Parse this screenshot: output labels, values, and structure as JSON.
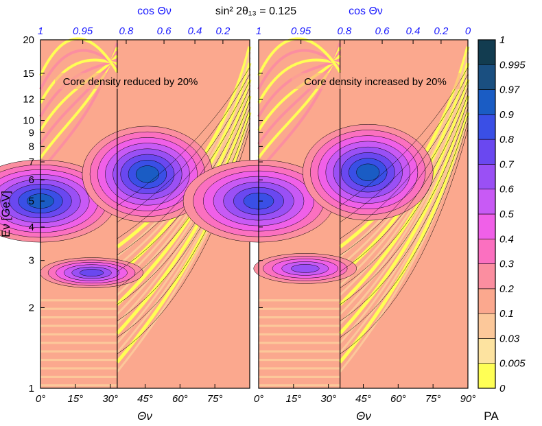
{
  "chart_data": {
    "type": "heatmap",
    "title": "sin² 2θ₁₃ = 0.125",
    "top_axis_label": "cos Θν",
    "xlabel": "Θν",
    "ylabel": "Eν [GeV]",
    "colorbar_label": "PA",
    "x_ticks": [
      "0°",
      "15°",
      "30°",
      "45°",
      "60°",
      "75°",
      "90°"
    ],
    "x_tick_values": [
      0,
      15,
      30,
      45,
      60,
      75,
      90
    ],
    "xlim": [
      0,
      90
    ],
    "top_ticks": [
      "1",
      "0.95",
      "0.8",
      "0.6",
      "0.4",
      "0.2",
      "0"
    ],
    "top_tick_values": [
      1,
      0.95,
      0.8,
      0.6,
      0.4,
      0.2,
      0
    ],
    "y_scale": "log",
    "ylim": [
      1,
      20
    ],
    "y_ticks": [
      "1",
      "2",
      "3",
      "4",
      "5",
      "6",
      "7",
      "8",
      "9",
      "10",
      "12",
      "15",
      "20"
    ],
    "y_tick_values": [
      1,
      2,
      3,
      4,
      5,
      6,
      7,
      8,
      9,
      10,
      12,
      15,
      20
    ],
    "colorbar_ticks": [
      "0",
      "0.005",
      "0.03",
      "0.1",
      "0.2",
      "0.3",
      "0.4",
      "0.5",
      "0.6",
      "0.7",
      "0.8",
      "0.9",
      "0.97",
      "0.995",
      "1"
    ],
    "colorbar_colors": [
      "#ffff55",
      "#fde3a0",
      "#fcc89a",
      "#fba88e",
      "#fb8ea0",
      "#fb70c0",
      "#f060e8",
      "#c85af5",
      "#9a50f5",
      "#6a48f0",
      "#3a4fe6",
      "#1a5cc4",
      "#1a4f80",
      "#123c50",
      "#0a2a28"
    ],
    "panels": [
      {
        "annotation": "Core density reduced by 20%",
        "ridge_theta": 33,
        "peaks": [
          {
            "theta": 0,
            "energy": 5.0,
            "P": 0.98
          },
          {
            "theta": 46,
            "energy": 6.3,
            "P": 0.99
          },
          {
            "theta": 22,
            "energy": 2.7,
            "P": 0.8
          }
        ]
      },
      {
        "annotation": "Core density increased by 20%",
        "ridge_theta": 35,
        "peaks": [
          {
            "theta": 0,
            "energy": 5.0,
            "P": 0.95
          },
          {
            "theta": 47,
            "energy": 6.4,
            "P": 0.99
          },
          {
            "theta": 20,
            "energy": 2.8,
            "P": 0.75
          }
        ]
      }
    ]
  }
}
